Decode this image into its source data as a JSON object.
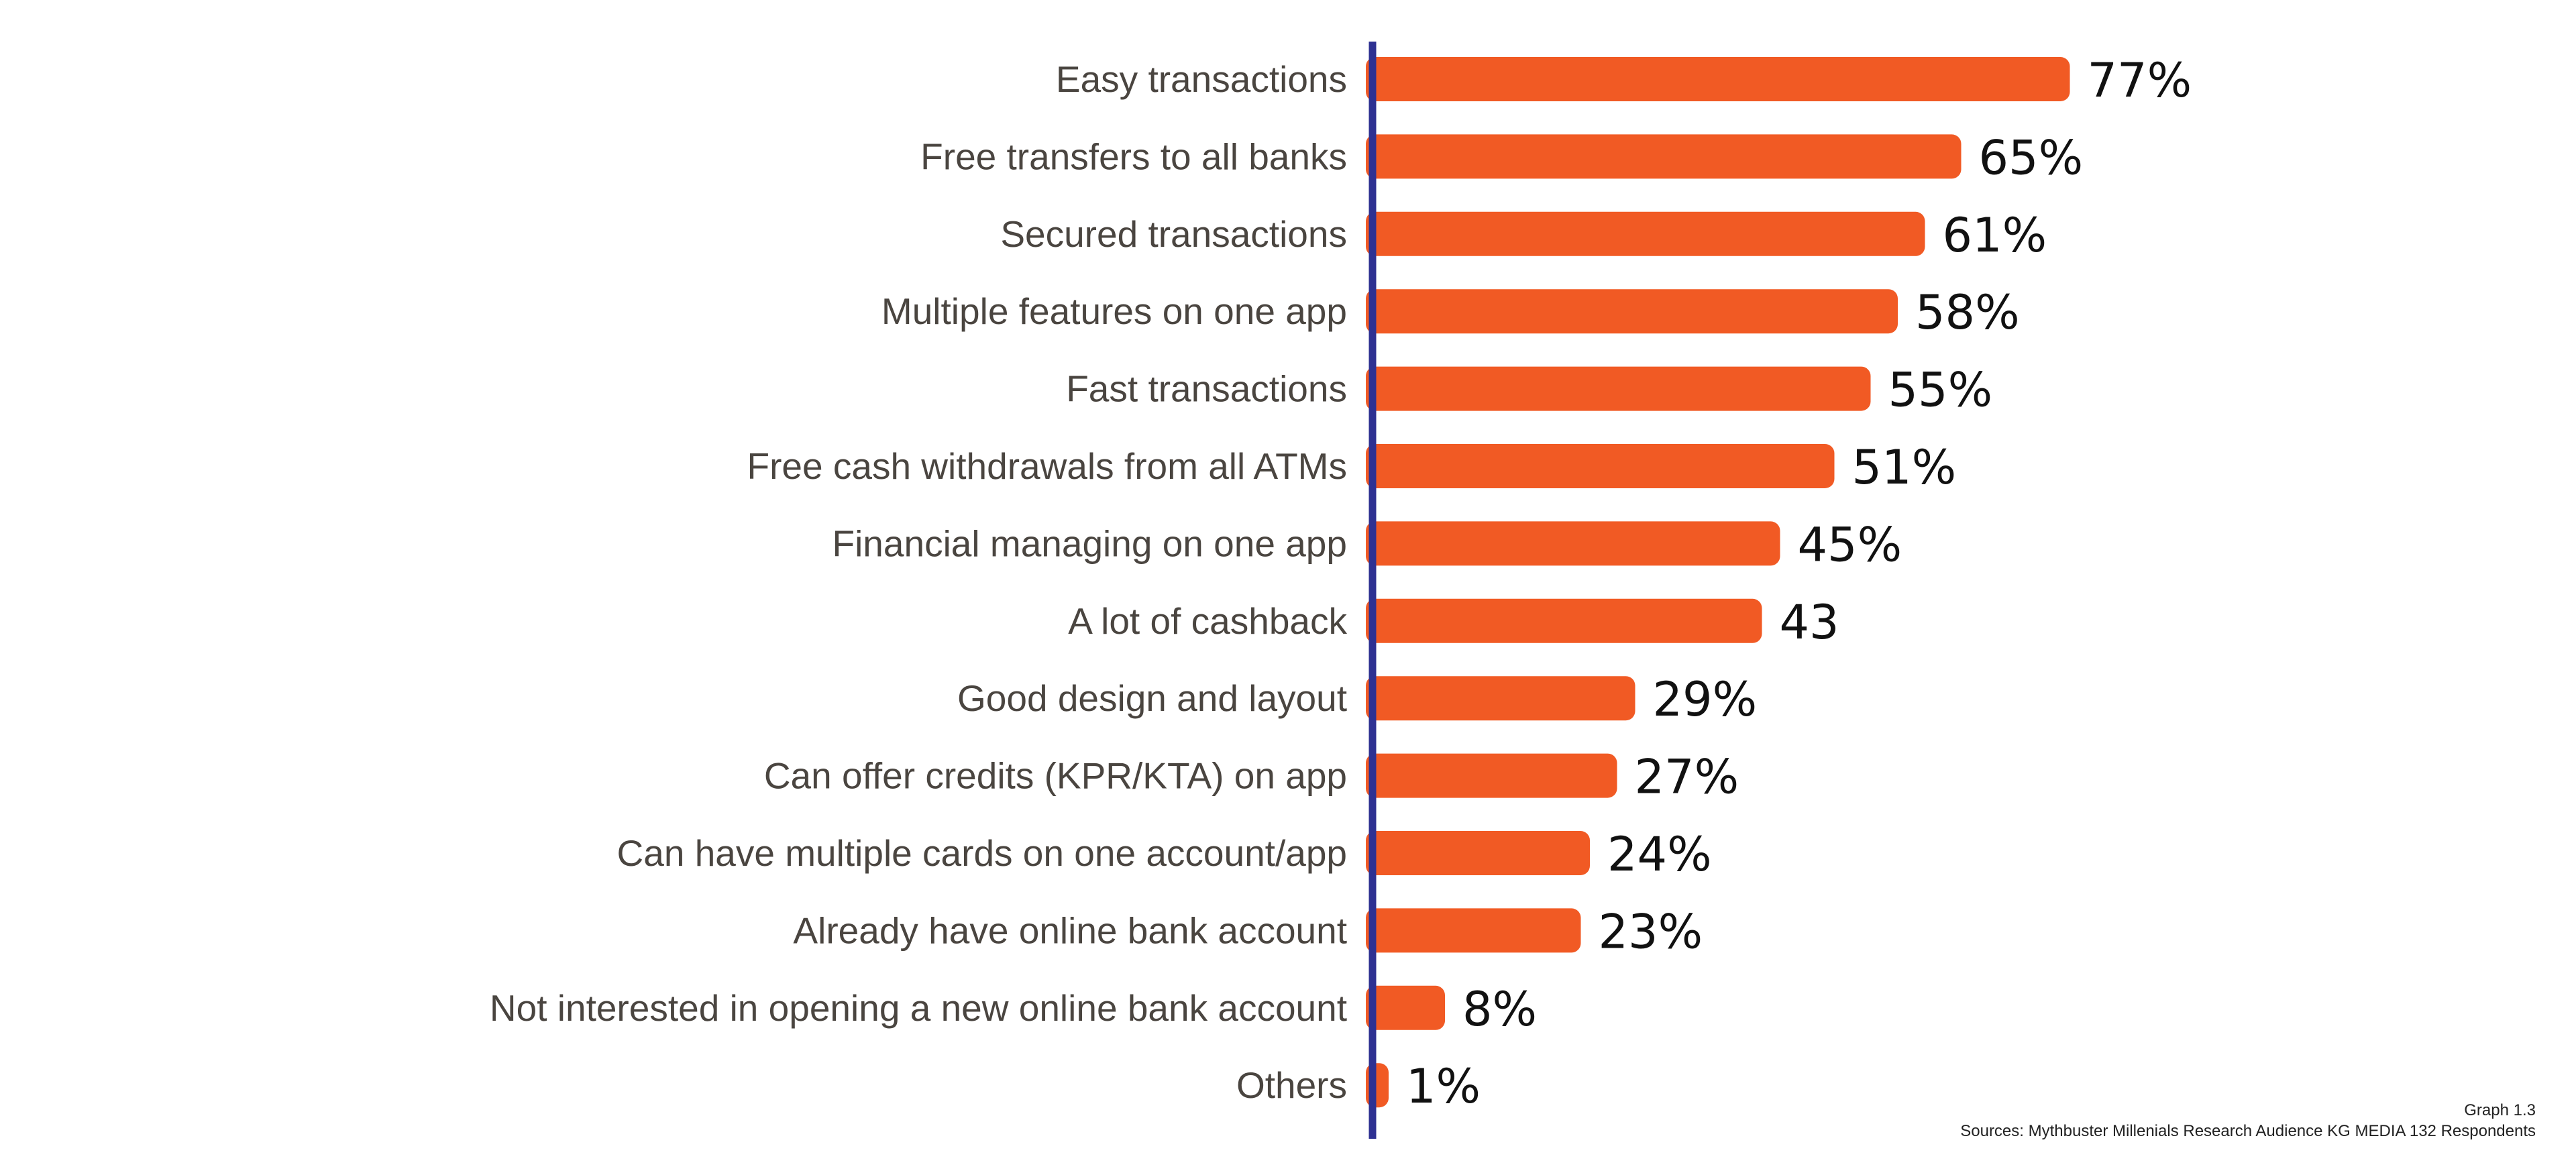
{
  "chart_data": {
    "type": "bar",
    "orientation": "horizontal",
    "categories": [
      "Easy transactions",
      "Free transfers to all banks",
      "Secured transactions",
      "Multiple features on one app",
      "Fast transactions",
      "Free cash withdrawals from all ATMs",
      "Financial managing on one app",
      "A lot of cashback",
      "Good design and layout",
      "Can offer credits (KPR/KTA) on app",
      "Can have multiple cards on one account/app",
      "Already have online bank account",
      "Not interested in opening a new online bank account",
      "Others"
    ],
    "values": [
      77,
      65,
      61,
      58,
      55,
      51,
      45,
      43,
      29,
      27,
      24,
      23,
      8,
      1
    ],
    "value_labels": [
      "77%",
      "65%",
      "61%",
      "58%",
      "55%",
      "51%",
      "45%",
      "43",
      "29%",
      "27%",
      "24%",
      "23%",
      "8%",
      "1%"
    ],
    "xlim": [
      0,
      100
    ],
    "grid": false,
    "legend": "none",
    "colors": {
      "bar": "#f15a24",
      "axis": "#2e3192"
    }
  },
  "footer": {
    "graph_number": "Graph 1.3",
    "source": "Sources: Mythbuster Millenials Research Audience KG MEDIA 132 Respondents"
  }
}
